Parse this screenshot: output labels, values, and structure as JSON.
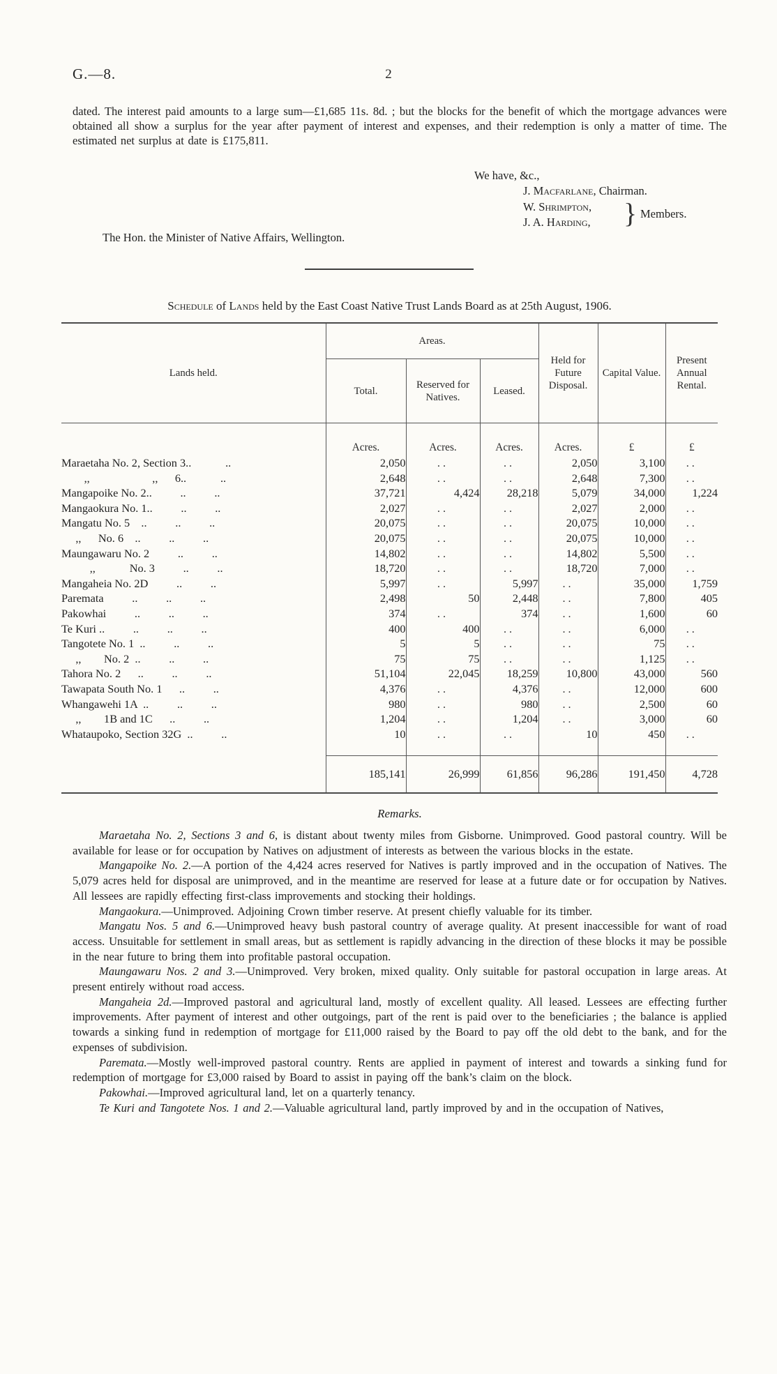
{
  "header": {
    "report_code": "G.—8.",
    "page_number": "2"
  },
  "intro": {
    "text": "dated.  The interest paid amounts to a large sum—£1,685 11s. 8d. ; but the blocks for the benefit of which the mortgage advances were obtained all show a surplus for the year after payment of interest and expenses, and their redemption is only a matter of time.  The estimated net surplus at date is £175,811."
  },
  "signatures": {
    "salutation": "We have, &c.,",
    "chairman_name": "J. Macfarlane",
    "chairman_suffix": ", Chairman.",
    "member1": "W. Shrimpton,",
    "member2": "J. A. Harding,",
    "brace": "}",
    "members_label": "Members."
  },
  "addressee": "The Hon. the Minister of Native Affairs, Wellington.",
  "schedule": {
    "title_sc1": "Schedule",
    "title_mid1": " of ",
    "title_sc2": "Lands",
    "title_rest": " held by the East Coast Native Trust Lands Board as at 25th August, 1906."
  },
  "table": {
    "col_lands": "Lands held.",
    "col_areas": "Areas.",
    "col_total": "Total.",
    "col_reserved": "Reserved for Natives.",
    "col_leased": "Leased.",
    "col_held": "Held for Future Disposal.",
    "col_capital": "Capital Value.",
    "col_rental": "Present Annual Rental.",
    "units": [
      "Acres.",
      "Acres.",
      "Acres.",
      "Acres.",
      "£",
      "£"
    ],
    "rows": [
      [
        "Maraetaha No. 2, Section 3..            ..",
        "2,050",
        "..",
        "..",
        "2,050",
        "3,100",
        ".."
      ],
      [
        "        ,,                      ,,      6..            ..",
        "2,648",
        "..",
        "..",
        "2,648",
        "7,300",
        ".."
      ],
      [
        "Mangapoike No. 2..          ..          ..",
        "37,721",
        "4,424",
        "28,218",
        "5,079",
        "34,000",
        "1,224"
      ],
      [
        "Mangaokura No. 1..          ..          ..",
        "2,027",
        "..",
        "..",
        "2,027",
        "2,000",
        ".."
      ],
      [
        "Mangatu No. 5    ..          ..          ..",
        "20,075",
        "..",
        "..",
        "20,075",
        "10,000",
        ".."
      ],
      [
        "     ,,      No. 6    ..          ..          ..",
        "20,075",
        "..",
        "..",
        "20,075",
        "10,000",
        ".."
      ],
      [
        "Maungawaru No. 2          ..          ..",
        "14,802",
        "..",
        "..",
        "14,802",
        "5,500",
        ".."
      ],
      [
        "          ,,            No. 3          ..          ..",
        "18,720",
        "..",
        "..",
        "18,720",
        "7,000",
        ".."
      ],
      [
        "Mangaheia No. 2D          ..          ..",
        "5,997",
        "..",
        "5,997",
        "..",
        "35,000",
        "1,759"
      ],
      [
        "Paremata          ..          ..          ..",
        "2,498",
        "50",
        "2,448",
        "..",
        "7,800",
        "405"
      ],
      [
        "Pakowhai          ..          ..          ..",
        "374",
        "..",
        "374",
        "..",
        "1,600",
        "60"
      ],
      [
        "Te Kuri ..          ..          ..          ..",
        "400",
        "400",
        "..",
        "..",
        "6,000",
        ".."
      ],
      [
        "Tangotete No. 1  ..          ..          ..",
        "5",
        "5",
        "..",
        "..",
        "75",
        ".."
      ],
      [
        "     ,,        No. 2  ..          ..          ..",
        "75",
        "75",
        "..",
        "..",
        "1,125",
        ".."
      ],
      [
        "Tahora No. 2      ..          ..          ..",
        "51,104",
        "22,045",
        "18,259",
        "10,800",
        "43,000",
        "560"
      ],
      [
        "Tawapata South No. 1      ..          ..",
        "4,376",
        "..",
        "4,376",
        "..",
        "12,000",
        "600"
      ],
      [
        "Whangawehi 1A  ..          ..          ..",
        "980",
        "..",
        "980",
        "..",
        "2,500",
        "60"
      ],
      [
        "     ,,        1B and 1C      ..          ..",
        "1,204",
        "..",
        "1,204",
        "..",
        "3,000",
        "60"
      ],
      [
        "Whataupoko, Section 32G  ..          ..",
        "10",
        "..",
        "..",
        "10",
        "450",
        ".."
      ]
    ],
    "totals": [
      "185,141",
      "26,999",
      "61,856",
      "96,286",
      "191,450",
      "4,728"
    ]
  },
  "remarks": {
    "title": "Remarks.",
    "items": [
      {
        "lead": "Maraetaha No. 2, Sections 3 and 6",
        "text": ", is distant about twenty miles from Gisborne.  Unimproved. Good pastoral country.  Will be available for lease or for occupation by Natives on adjustment of interests as between the various blocks in the estate."
      },
      {
        "lead": "Mangapoike No. 2.",
        "text": "—A portion of the 4,424 acres reserved for Natives is partly improved and in the occupation of Natives.  The 5,079 acres held for disposal are unimproved, and in the meantime are reserved for lease at a future date or for occupation by Natives.  All lessees are rapidly effecting first-class improvements and stocking their holdings."
      },
      {
        "lead": "Mangaokura.",
        "text": "—Unimproved.  Adjoining Crown timber reserve.  At present chiefly valuable for its timber."
      },
      {
        "lead": "Mangatu Nos. 5 and 6.",
        "text": "—Unimproved heavy bush pastoral country of average quality.  At present inaccessible for want of road access.  Unsuitable for settlement in small areas, but as settlement is rapidly advancing in the direction of these blocks it may be possible in the near future to bring them into profitable pastoral occupation."
      },
      {
        "lead": "Maungawaru Nos. 2 and 3.",
        "text": "—Unimproved.  Very broken, mixed quality.  Only suitable for pastoral occupation in large areas.  At present entirely without road access."
      },
      {
        "lead": "Mangaheia 2d.",
        "text": "—Improved pastoral and agricultural land, mostly of excellent quality.  All leased.  Lessees are effecting further improvements.  After payment of interest and other outgoings, part of the rent is paid over to the beneficiaries ; the balance is applied towards a sinking fund in redemption of mortgage for £11,000 raised by the Board to pay off the old debt to the bank, and for the expenses of subdivision."
      },
      {
        "lead": "Paremata.",
        "text": "—Mostly well-improved pastoral country.  Rents are applied in payment of interest and towards a sinking fund for redemption of mortgage for £3,000 raised by Board to assist in paying off the bank’s claim on the block."
      },
      {
        "lead": "Pakowhai.",
        "text": "—Improved agricultural land, let on a quarterly tenancy."
      },
      {
        "lead": "Te Kuri and Tangotete Nos. 1 and 2.",
        "text": "—Valuable agricultural land, partly improved by and in the occupation of Natives,"
      }
    ]
  }
}
